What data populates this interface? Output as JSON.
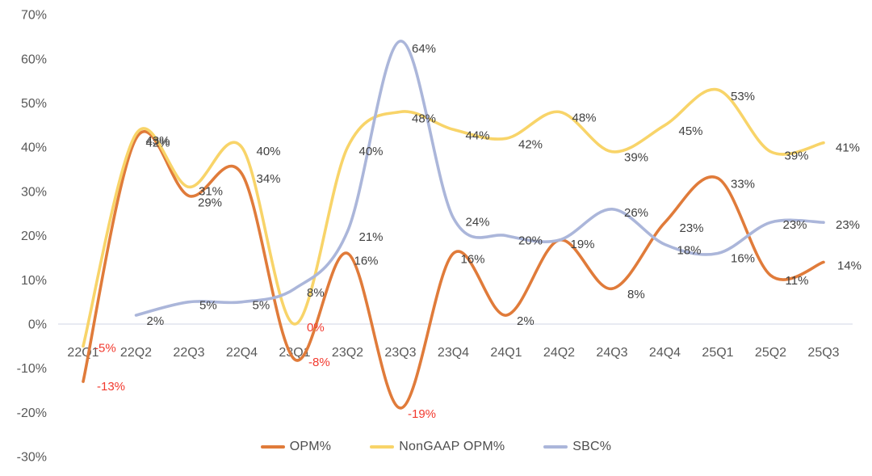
{
  "chart_data": {
    "type": "line",
    "title": "",
    "xlabel": "",
    "ylabel": "",
    "categories": [
      "22Q1",
      "22Q2",
      "22Q3",
      "22Q4",
      "23Q1",
      "23Q2",
      "23Q3",
      "23Q4",
      "24Q1",
      "24Q2",
      "24Q3",
      "24Q4",
      "25Q1",
      "25Q2",
      "25Q3"
    ],
    "series": [
      {
        "name": "OPM%",
        "color": "#e07b3a",
        "values": [
          -13,
          42,
          29,
          34,
          -8,
          16,
          -19,
          16,
          2,
          19,
          8,
          23,
          33,
          11,
          14
        ]
      },
      {
        "name": "NonGAAP OPM%",
        "color": "#f8d469",
        "values": [
          -5,
          43,
          31,
          40,
          0,
          40,
          48,
          44,
          42,
          48,
          39,
          45,
          53,
          39,
          41
        ]
      },
      {
        "name": "SBC%",
        "color": "#abb6da",
        "values": [
          null,
          2,
          5,
          5,
          8,
          21,
          64,
          24,
          20,
          19,
          26,
          18,
          16,
          23,
          23
        ]
      }
    ],
    "ylim": [
      -30,
      70
    ],
    "yticks": [
      70,
      60,
      50,
      40,
      30,
      20,
      10,
      0,
      -10,
      -20,
      -30
    ],
    "ytick_suffix": "%",
    "grid": "zero-line-only",
    "legend_position": "bottom",
    "smooth_lines": true,
    "data_labels_shown": true,
    "colors": {
      "axis_text": "#595959",
      "data_label": "#404040",
      "negative_label": "#f2392e",
      "zero_line": "#d9deeb",
      "background": "#ffffff"
    }
  }
}
